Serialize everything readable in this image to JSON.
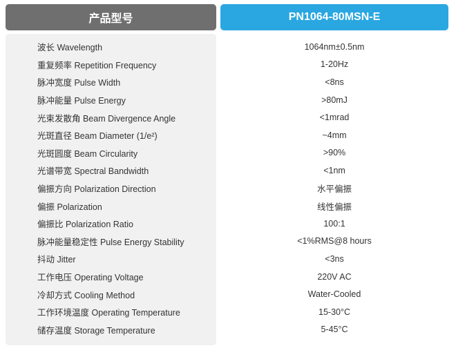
{
  "header": {
    "left_label": "产品型号",
    "right_label": "PN1064-80MSN-E"
  },
  "specs": [
    {
      "label": "波长 Wavelength",
      "value": "1064nm±0.5nm"
    },
    {
      "label": "重复频率 Repetition Frequency",
      "value": "1-20Hz"
    },
    {
      "label": "脉冲宽度 Pulse Width",
      "value": "<8ns"
    },
    {
      "label": "脉冲能量 Pulse Energy",
      "value": ">80mJ"
    },
    {
      "label": "光束发散角 Beam Divergence Angle",
      "value": "<1mrad"
    },
    {
      "label": "光斑直径 Beam Diameter (1/e²)",
      "value": "~4mm"
    },
    {
      "label": "光斑圆度 Beam Circularity",
      "value": ">90%"
    },
    {
      "label": "光谱带宽 Spectral Bandwidth",
      "value": "<1nm"
    },
    {
      "label": "偏振方向 Polarization Direction",
      "value": "水平偏振"
    },
    {
      "label": "偏振 Polarization",
      "value": "线性偏振"
    },
    {
      "label": "偏振比 Polarization Ratio",
      "value": "100:1"
    },
    {
      "label": "脉冲能量稳定性 Pulse Energy Stability",
      "value": "<1%RMS@8 hours"
    },
    {
      "label": "抖动 Jitter",
      "value": "<3ns"
    },
    {
      "label": "工作电压 Operating Voltage",
      "value": "220V AC"
    },
    {
      "label": "冷却方式 Cooling Method",
      "value": "Water-Cooled"
    },
    {
      "label": "工作环境温度 Operating Temperature",
      "value": "15-30°C"
    },
    {
      "label": "储存温度 Storage Temperature",
      "value": "5-45°C"
    }
  ]
}
